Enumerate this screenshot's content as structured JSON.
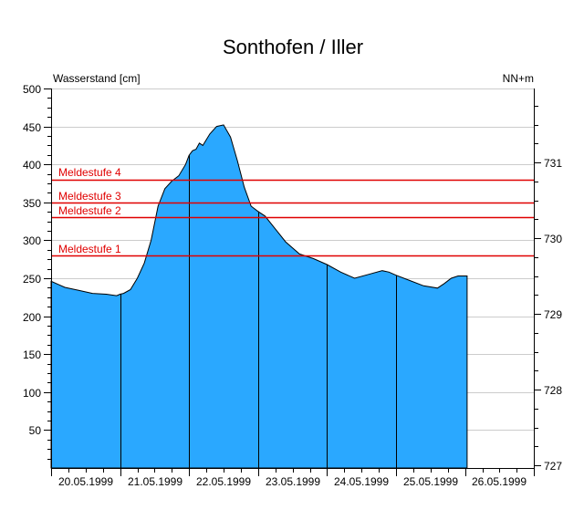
{
  "chart_data": {
    "type": "area",
    "title": "Sonthofen / Iller",
    "ylabel": "Wasserstand [cm]",
    "ylabel_right": "NN+m",
    "ylim": [
      0,
      500
    ],
    "yticks": [
      50,
      100,
      150,
      200,
      250,
      300,
      350,
      400,
      450,
      500
    ],
    "yticks_right": [
      727,
      728,
      729,
      730,
      731
    ],
    "x_categories": [
      "20.05.1999",
      "21.05.1999",
      "22.05.1999",
      "23.05.1999",
      "24.05.1999",
      "25.05.1999",
      "26.05.1999"
    ],
    "grid": true,
    "fill_color": "#2aa8ff",
    "thresholds": [
      {
        "label": "Meldestufe 4",
        "value": 380,
        "color": "#e00000"
      },
      {
        "label": "Meldestufe 3",
        "value": 350,
        "color": "#e00000"
      },
      {
        "label": "Meldestufe 2",
        "value": 330,
        "color": "#e00000"
      },
      {
        "label": "Meldestufe 1",
        "value": 280,
        "color": "#e00000"
      }
    ],
    "series": [
      {
        "name": "Wasserstand",
        "x_days": [
          0,
          0.1,
          0.2,
          0.4,
          0.6,
          0.8,
          0.95,
          1.0,
          1.05,
          1.15,
          1.25,
          1.35,
          1.45,
          1.55,
          1.65,
          1.75,
          1.85,
          1.95,
          2.0,
          2.05,
          2.1,
          2.15,
          2.2,
          2.3,
          2.4,
          2.5,
          2.6,
          2.7,
          2.8,
          2.9,
          3.0,
          3.1,
          3.25,
          3.4,
          3.6,
          3.8,
          4.0,
          4.2,
          4.4,
          4.6,
          4.8,
          4.9,
          5.0,
          5.2,
          5.4,
          5.6,
          5.7,
          5.8,
          5.9,
          6.0,
          6.03
        ],
        "values": [
          246,
          242,
          238,
          234,
          230,
          229,
          227,
          229,
          230,
          235,
          250,
          270,
          300,
          345,
          368,
          378,
          385,
          400,
          412,
          418,
          420,
          428,
          425,
          440,
          450,
          452,
          436,
          405,
          370,
          345,
          338,
          332,
          315,
          298,
          282,
          276,
          268,
          258,
          250,
          255,
          260,
          258,
          254,
          247,
          240,
          237,
          243,
          250,
          253,
          253,
          253
        ]
      }
    ]
  },
  "labels": {
    "title": "Sonthofen / Iller",
    "ylabel_left": "Wasserstand [cm]",
    "ylabel_right": "NN+m",
    "meld4": "Meldestufe 4",
    "meld3": "Meldestufe 3",
    "meld2": "Meldestufe 2",
    "meld1": "Meldestufe 1",
    "y500": "500",
    "y450": "450",
    "y400": "400",
    "y350": "350",
    "y300": "300",
    "y250": "250",
    "y200": "200",
    "y150": "150",
    "y100": "100",
    "y50": "50",
    "r731": "731",
    "r730": "730",
    "r729": "729",
    "r728": "728",
    "r727": "727",
    "d20": "20.05.1999",
    "d21": "21.05.1999",
    "d22": "22.05.1999",
    "d23": "23.05.1999",
    "d24": "24.05.1999",
    "d25": "25.05.1999",
    "d26": "26.05.1999"
  }
}
